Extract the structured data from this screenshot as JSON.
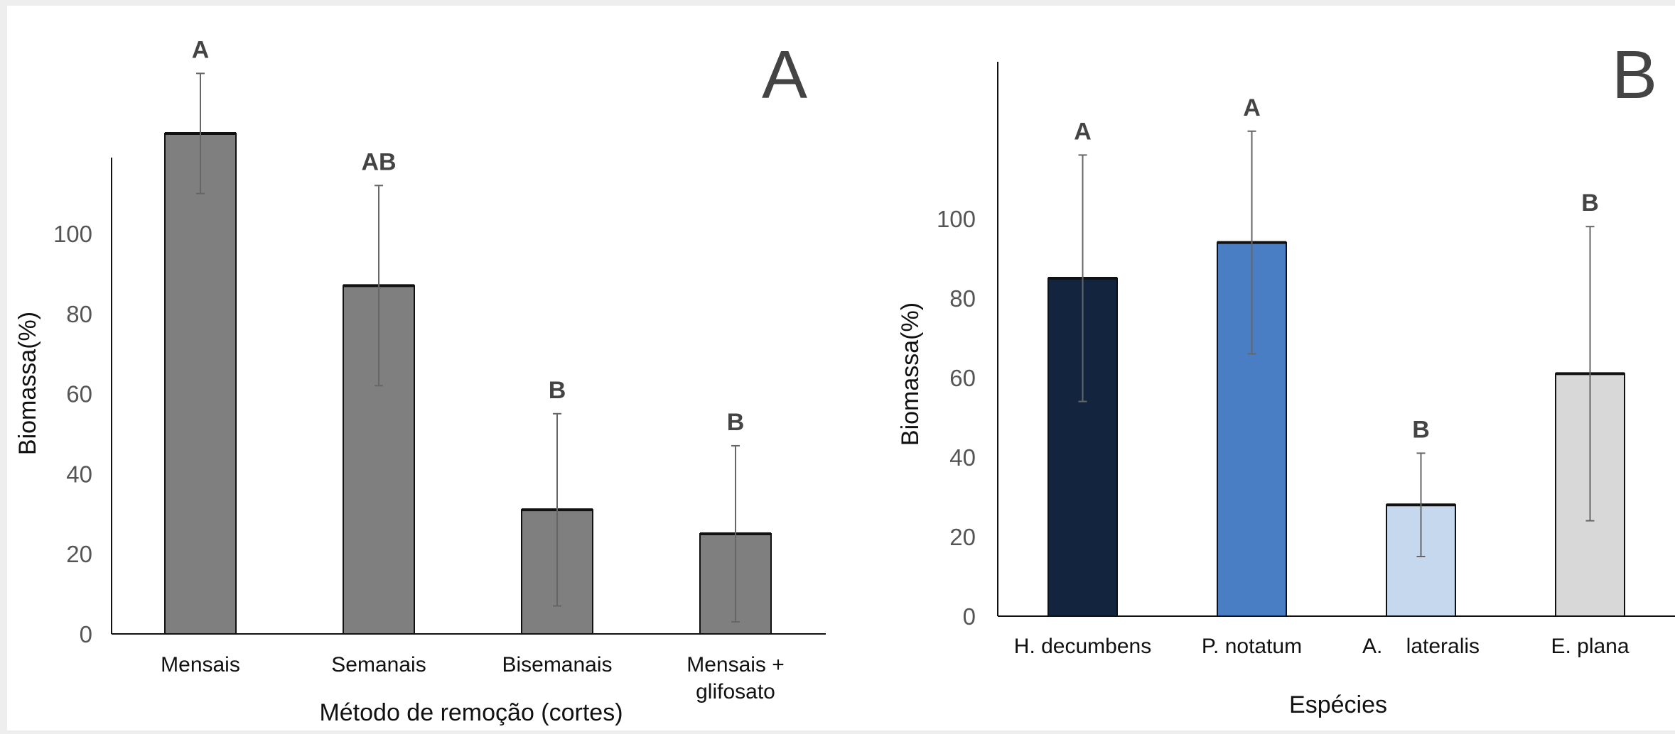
{
  "chart_data": [
    {
      "type": "bar",
      "panel_label": "A",
      "title": "",
      "xlabel": "Método de remoção (cortes)",
      "ylabel": "Biomassa(%)",
      "ylim": [
        0,
        120
      ],
      "yticks": [
        "0",
        "20",
        "40",
        "60",
        "80",
        "100"
      ],
      "grid": false,
      "categories": [
        "Mensais",
        "Semanais",
        "Bisemanais",
        "Mensais +\nglifosato"
      ],
      "values": [
        125,
        87,
        31,
        25
      ],
      "error": [
        15,
        25,
        24,
        22
      ],
      "significance": [
        "A",
        "AB",
        "B",
        "B"
      ],
      "colors": [
        "#7f7f7f",
        "#7f7f7f",
        "#7f7f7f",
        "#7f7f7f"
      ]
    },
    {
      "type": "bar",
      "panel_label": "B",
      "title": "",
      "xlabel": "Espécies",
      "ylabel": "Biomassa(%)",
      "ylim": [
        0,
        120
      ],
      "yticks": [
        "0",
        "20",
        "40",
        "60",
        "80",
        "100"
      ],
      "grid": false,
      "categories": [
        "H. decumbens",
        "P. notatum",
        "A.    lateralis",
        "E. plana"
      ],
      "values": [
        85,
        94,
        28,
        61
      ],
      "error": [
        31,
        28,
        13,
        37
      ],
      "significance": [
        "A",
        "A",
        "B",
        "B"
      ],
      "colors": [
        "#13243f",
        "#4a7ec4",
        "#c6d8ee",
        "#d8d8d8"
      ]
    }
  ]
}
